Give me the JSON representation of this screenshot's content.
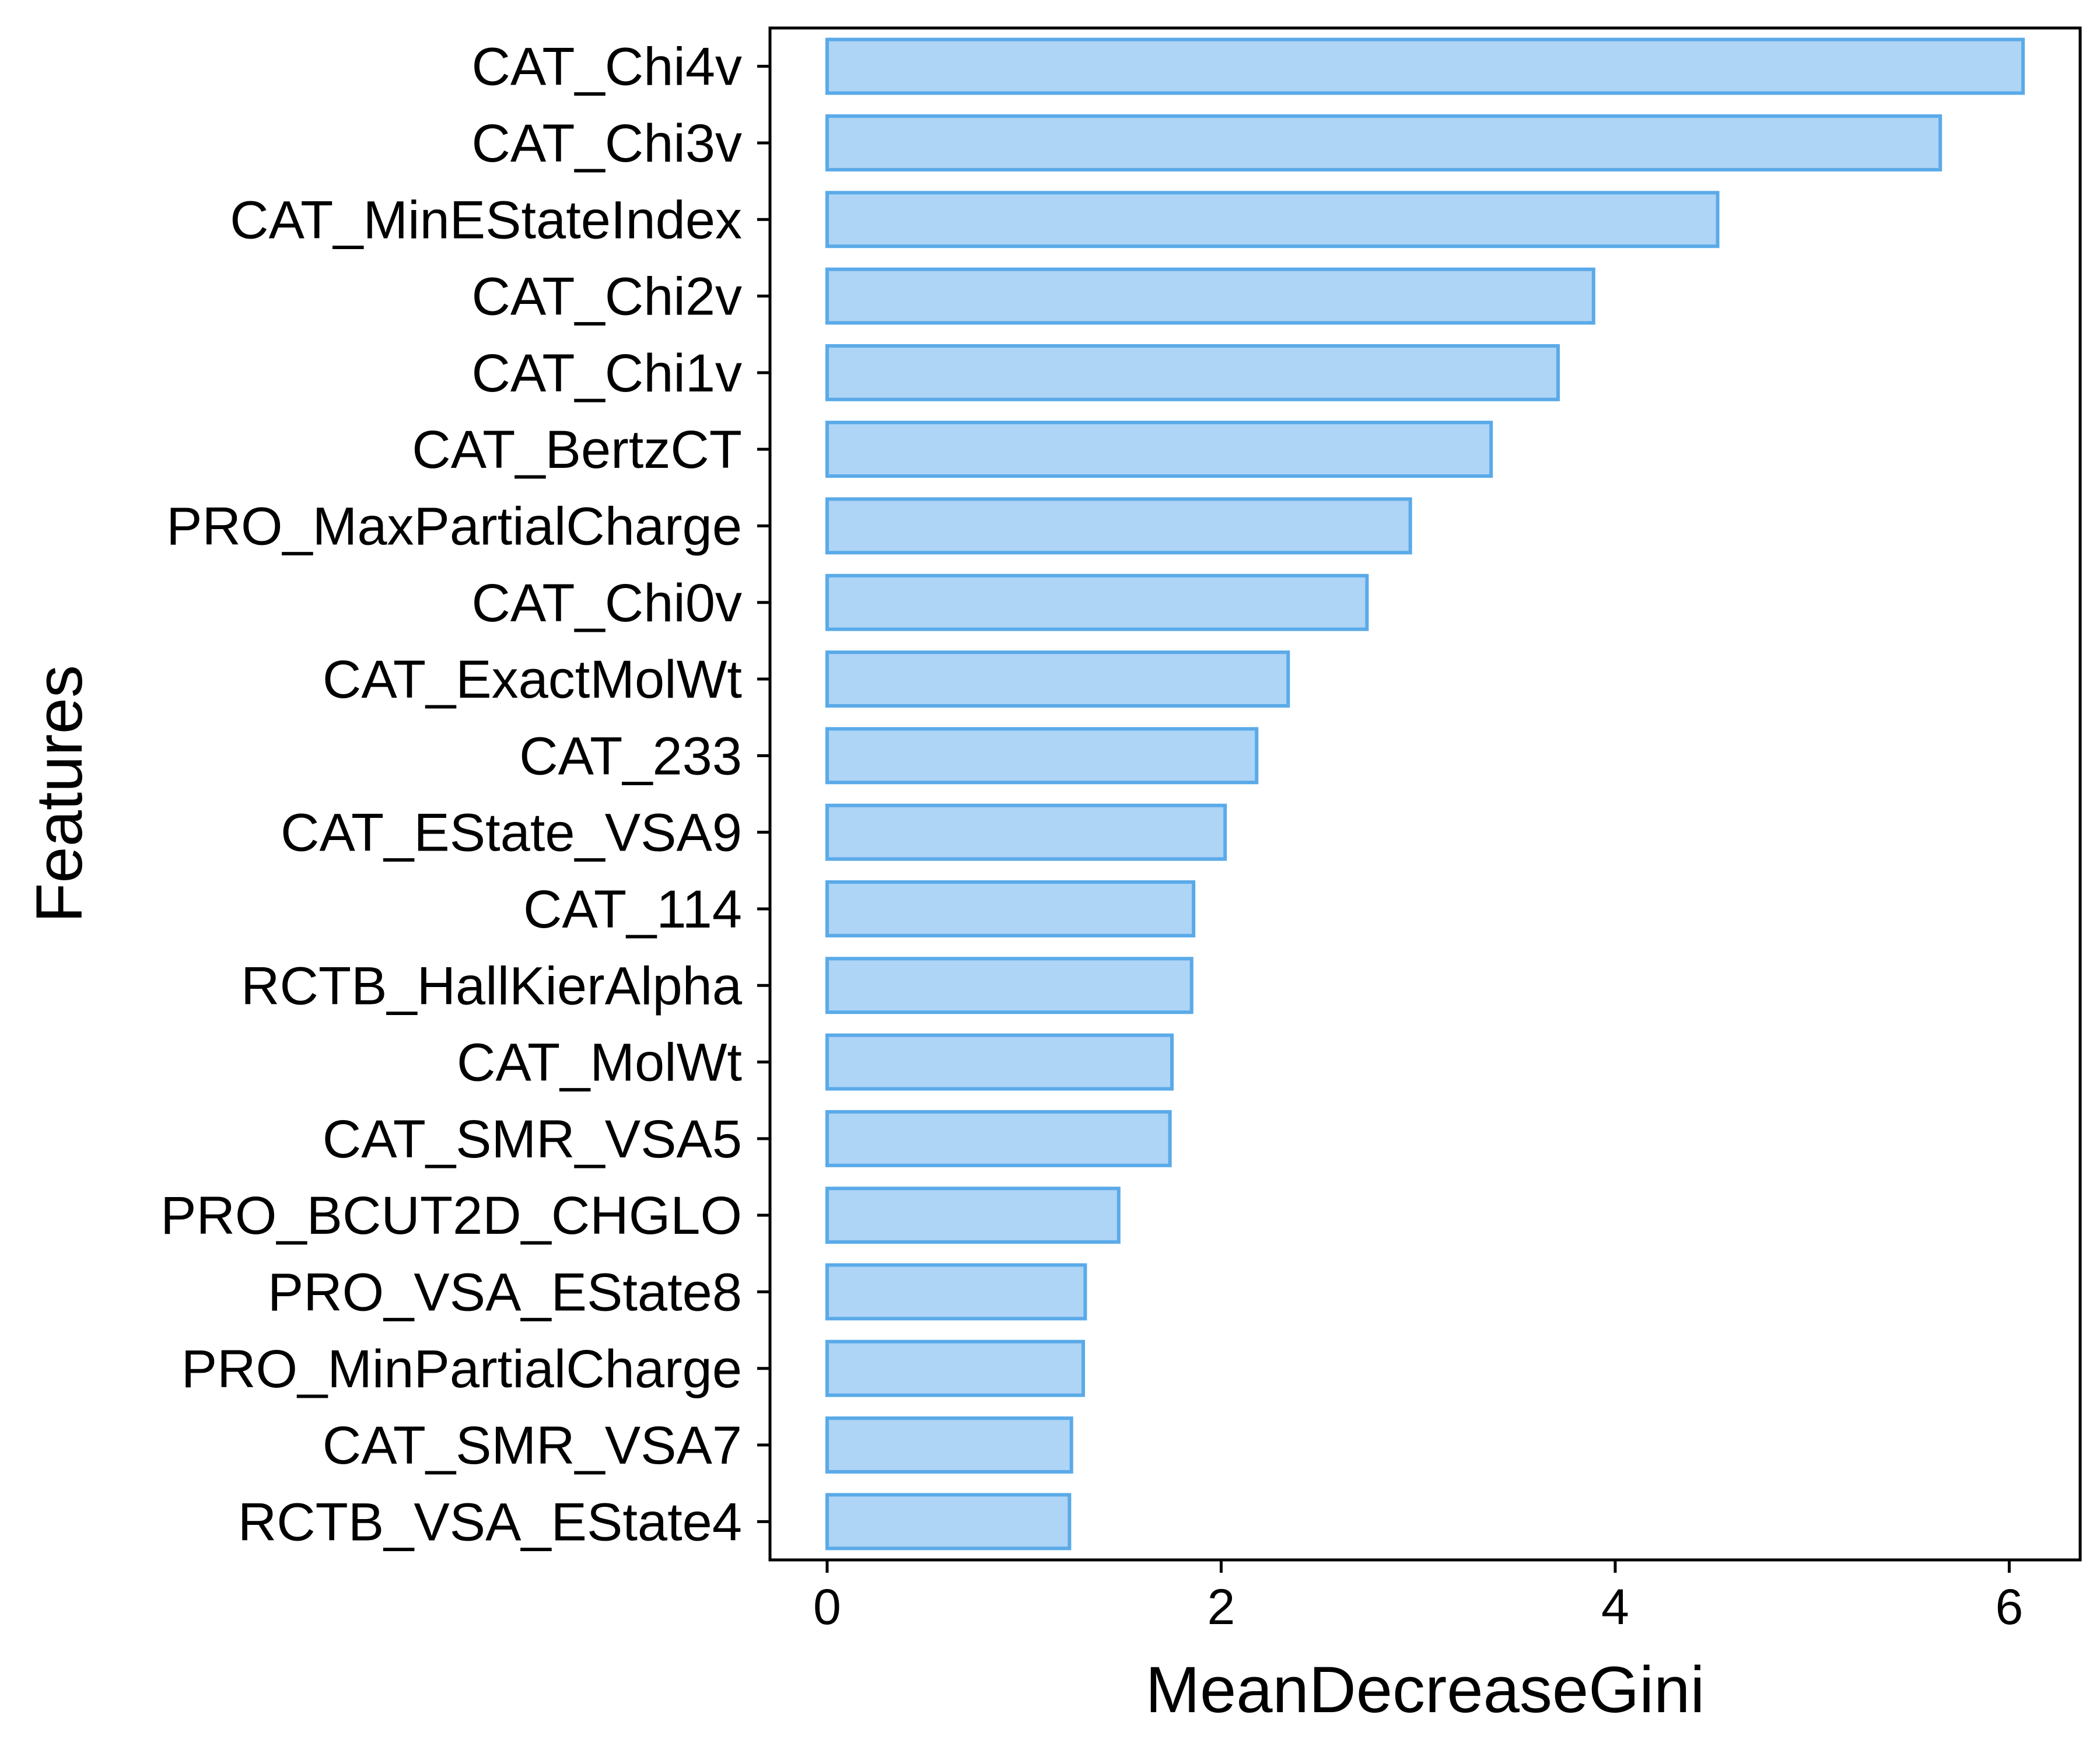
{
  "colors": {
    "bar_fill": "#AED4F6",
    "bar_stroke": "#5AAAE8",
    "axis": "#000000",
    "background": "#FFFFFF"
  },
  "chart_data": {
    "type": "bar",
    "orientation": "horizontal",
    "xlabel": "MeanDecreaseGini",
    "ylabel": "Features",
    "xlim": [
      -0.29,
      6.36
    ],
    "xticks": [
      0,
      2,
      4,
      6
    ],
    "grid": false,
    "categories": [
      "CAT_Chi4v",
      "CAT_Chi3v",
      "CAT_MinEStateIndex",
      "CAT_Chi2v",
      "CAT_Chi1v",
      "CAT_BertzCT",
      "PRO_MaxPartialCharge",
      "CAT_Chi0v",
      "CAT_ExactMolWt",
      "CAT_233",
      "CAT_EState_VSA9",
      "CAT_114",
      "RCTB_HallKierAlpha",
      "CAT_MolWt",
      "CAT_SMR_VSA5",
      "PRO_BCUT2D_CHGLO",
      "PRO_VSA_EState8",
      "PRO_MinPartialCharge",
      "CAT_SMR_VSA7",
      "RCTB_VSA_EState4"
    ],
    "values": [
      6.07,
      5.65,
      4.52,
      3.89,
      3.71,
      3.37,
      2.96,
      2.74,
      2.34,
      2.18,
      2.02,
      1.86,
      1.85,
      1.75,
      1.74,
      1.48,
      1.31,
      1.3,
      1.24,
      1.23
    ]
  }
}
